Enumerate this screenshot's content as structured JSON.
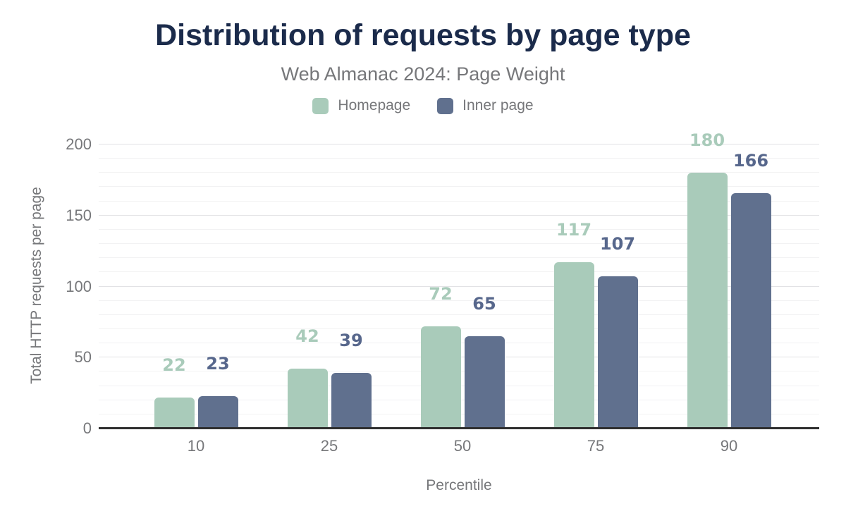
{
  "title": "Distribution of requests by page type",
  "subtitle": "Web Almanac 2024: Page Weight",
  "legend": [
    {
      "label": "Homepage",
      "color": "#a9cbba"
    },
    {
      "label": "Inner page",
      "color": "#60708e"
    }
  ],
  "chart_data": {
    "type": "bar",
    "title": "Distribution of requests by page type",
    "subtitle": "Web Almanac 2024: Page Weight",
    "categories": [
      "10",
      "25",
      "50",
      "75",
      "90"
    ],
    "series": [
      {
        "name": "Homepage",
        "color": "#a9cbba",
        "label_color": "#a9cbba",
        "values": [
          22,
          42,
          72,
          117,
          180
        ]
      },
      {
        "name": "Inner page",
        "color": "#60708e",
        "label_color": "#57678c",
        "values": [
          23,
          39,
          65,
          107,
          166
        ]
      }
    ],
    "xlabel": "Percentile",
    "ylabel": "Total HTTP requests per page",
    "ylim": [
      0,
      200
    ],
    "yticks": [
      0,
      50,
      100,
      150,
      200
    ],
    "minor_grid_step": 10,
    "grid": true,
    "legend_position": "top",
    "data_labels": true
  },
  "colors": {
    "background": "#ffffff",
    "title_text": "#1b2b4b",
    "muted_text": "#76777a",
    "axis_line": "#2f2f2f",
    "grid_major": "#e2e2e5",
    "grid_minor": "#f2f2f3"
  }
}
